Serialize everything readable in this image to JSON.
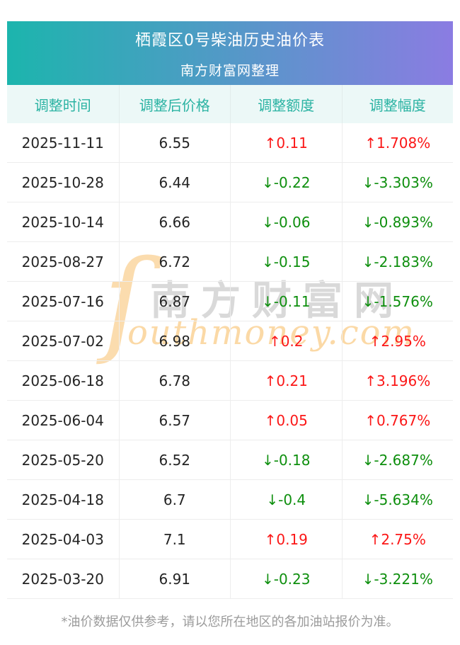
{
  "banner": {
    "title": "栖霞区0号柴油历史油价表",
    "subtitle": "南方财富网整理"
  },
  "table": {
    "columns": [
      "调整时间",
      "调整后价格",
      "调整额度",
      "调整幅度"
    ],
    "rows": [
      {
        "date": "2025-11-11",
        "price": "6.55",
        "change": "↑0.11",
        "rate": "↑1.708%",
        "direction": "up"
      },
      {
        "date": "2025-10-28",
        "price": "6.44",
        "change": "↓-0.22",
        "rate": "↓-3.303%",
        "direction": "down"
      },
      {
        "date": "2025-10-14",
        "price": "6.66",
        "change": "↓-0.06",
        "rate": "↓-0.893%",
        "direction": "down"
      },
      {
        "date": "2025-08-27",
        "price": "6.72",
        "change": "↓-0.15",
        "rate": "↓-2.183%",
        "direction": "down"
      },
      {
        "date": "2025-07-16",
        "price": "6.87",
        "change": "↓-0.11",
        "rate": "↓-1.576%",
        "direction": "down"
      },
      {
        "date": "2025-07-02",
        "price": "6.98",
        "change": "↑0.2",
        "rate": "↑2.95%",
        "direction": "up"
      },
      {
        "date": "2025-06-18",
        "price": "6.78",
        "change": "↑0.21",
        "rate": "↑3.196%",
        "direction": "up"
      },
      {
        "date": "2025-06-04",
        "price": "6.57",
        "change": "↑0.05",
        "rate": "↑0.767%",
        "direction": "up"
      },
      {
        "date": "2025-05-20",
        "price": "6.52",
        "change": "↓-0.18",
        "rate": "↓-2.687%",
        "direction": "down"
      },
      {
        "date": "2025-04-18",
        "price": "6.7",
        "change": "↓-0.4",
        "rate": "↓-5.634%",
        "direction": "down"
      },
      {
        "date": "2025-04-03",
        "price": "7.1",
        "change": "↑0.19",
        "rate": "↑2.75%",
        "direction": "up"
      },
      {
        "date": "2025-03-20",
        "price": "6.91",
        "change": "↓-0.23",
        "rate": "↓-3.221%",
        "direction": "down"
      }
    ]
  },
  "watermark": {
    "swash": "ſ",
    "cn": "南方财富网",
    "en": "outhmoney.com"
  },
  "footer": {
    "note": "*油价数据仅供参考，请以您所在地区的各加油站报价为准。"
  },
  "colors": {
    "banner_gradient_left": "#1cb5ad",
    "banner_gradient_right": "#8b7ce2",
    "header_text": "#2bb3a3",
    "header_background": "#ecf8f7",
    "up_red": "#fb1717",
    "down_green": "#0e8f0e",
    "watermark_gray": "#d9d9d9",
    "watermark_orange": "#fbd9a6",
    "footnote_gray": "#9b9b9b"
  }
}
